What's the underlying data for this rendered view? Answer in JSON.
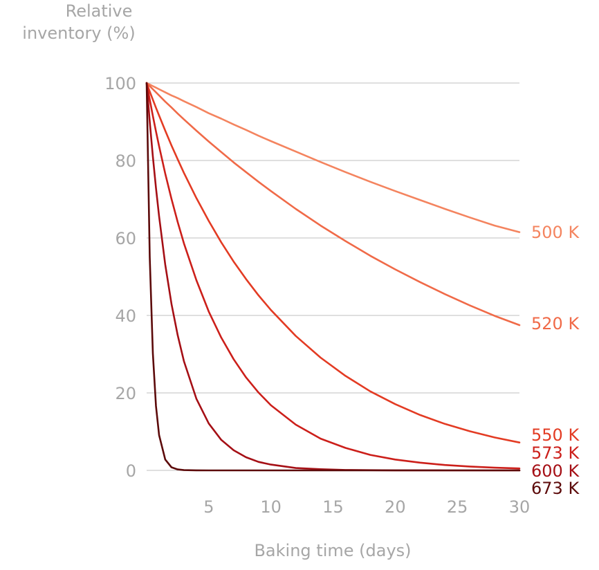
{
  "chart_data": {
    "type": "line",
    "ylabel_lines": [
      "Relative",
      "inventory (%)"
    ],
    "xlabel": "Baking time (days)",
    "xlim": [
      0,
      30
    ],
    "ylim": [
      0,
      100
    ],
    "xticks": [
      5,
      10,
      15,
      20,
      25,
      30
    ],
    "yticks": [
      0,
      20,
      40,
      60,
      80,
      100
    ],
    "grid": "horizontal",
    "legend": "direct labels at right end of lines",
    "x": [
      0,
      0.25,
      0.5,
      0.75,
      1,
      1.5,
      2,
      2.5,
      3,
      4,
      5,
      6,
      7,
      8,
      9,
      10,
      12,
      14,
      16,
      18,
      20,
      22,
      24,
      26,
      28,
      30
    ],
    "series": [
      {
        "name": "500 K",
        "color": "#f4845f",
        "values": [
          100,
          99.6,
          99.2,
          98.8,
          98.4,
          97.6,
          96.8,
          96.1,
          95.3,
          93.8,
          92.2,
          90.8,
          89.3,
          87.9,
          86.4,
          85.0,
          82.3,
          79.6,
          77.0,
          74.5,
          72.1,
          69.8,
          67.5,
          65.3,
          63.2,
          61.5
        ]
      },
      {
        "name": "520 K",
        "color": "#f06a48",
        "values": [
          100,
          99.2,
          98.4,
          97.6,
          96.8,
          95.2,
          93.7,
          92.1,
          90.6,
          87.7,
          84.9,
          82.2,
          79.5,
          77.0,
          74.5,
          72.1,
          67.5,
          63.2,
          59.2,
          55.4,
          51.9,
          48.6,
          45.5,
          42.6,
          39.9,
          37.5
        ]
      },
      {
        "name": "550 K",
        "color": "#e33b23",
        "values": [
          100,
          97.8,
          95.7,
          93.6,
          91.6,
          87.7,
          83.9,
          80.3,
          76.8,
          70.3,
          64.4,
          58.9,
          53.9,
          49.4,
          45.2,
          41.4,
          34.7,
          29.1,
          24.4,
          20.4,
          17.1,
          14.3,
          12.0,
          10.1,
          8.5,
          7.2
        ]
      },
      {
        "name": "573 K",
        "color": "#cc1f1a",
        "values": [
          100,
          95.7,
          91.5,
          87.5,
          83.7,
          76.6,
          70.1,
          64.1,
          58.6,
          49.1,
          41.0,
          34.3,
          28.7,
          24.0,
          20.1,
          16.8,
          11.8,
          8.2,
          5.8,
          4.0,
          2.8,
          2.0,
          1.4,
          1.0,
          0.7,
          0.5
        ]
      },
      {
        "name": "600 K",
        "color": "#a50f15",
        "values": [
          100,
          90.0,
          81.0,
          72.9,
          65.6,
          53.1,
          43.0,
          34.9,
          28.2,
          18.5,
          12.1,
          7.9,
          5.2,
          3.4,
          2.2,
          1.5,
          0.6,
          0.3,
          0.1,
          0.05,
          0.02,
          0.01,
          0,
          0,
          0,
          0
        ]
      },
      {
        "name": "673 K",
        "color": "#5c0a0a",
        "values": [
          100,
          55.0,
          30.2,
          16.6,
          9.1,
          2.8,
          0.8,
          0.25,
          0.08,
          0.01,
          0,
          0,
          0,
          0,
          0,
          0,
          0,
          0,
          0,
          0,
          0,
          0,
          0,
          0,
          0,
          0
        ]
      }
    ]
  }
}
